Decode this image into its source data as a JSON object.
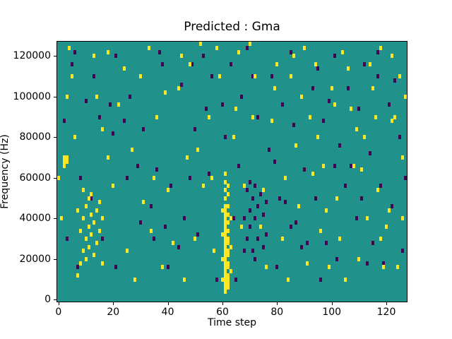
{
  "chart_data": {
    "type": "heatmap",
    "title": "Predicted : Gma",
    "xlabel": "Time step",
    "ylabel": "Frequency (Hz)",
    "x_range": [
      0,
      128
    ],
    "y_range_hz": [
      0,
      128000
    ],
    "grid": {
      "cols": 128,
      "rows": 64,
      "row_height_hz": 2000
    },
    "xticks": [
      0,
      20,
      40,
      60,
      80,
      100,
      120
    ],
    "yticks": [
      0,
      20000,
      40000,
      60000,
      80000,
      100000,
      120000
    ],
    "legend": "none",
    "colors": {
      "background": "#21918c",
      "high": "#fde725",
      "low": "#440154"
    },
    "cells": {
      "high": [
        [
          60,
          5
        ],
        [
          60,
          10
        ],
        [
          60,
          16
        ],
        [
          60,
          22
        ],
        [
          61,
          2
        ],
        [
          61,
          3
        ],
        [
          61,
          4
        ],
        [
          61,
          5
        ],
        [
          61,
          6
        ],
        [
          61,
          7
        ],
        [
          61,
          8
        ],
        [
          61,
          9
        ],
        [
          61,
          10
        ],
        [
          61,
          11
        ],
        [
          61,
          12
        ],
        [
          61,
          13
        ],
        [
          61,
          14
        ],
        [
          61,
          15
        ],
        [
          61,
          16
        ],
        [
          61,
          17
        ],
        [
          61,
          18
        ],
        [
          61,
          19
        ],
        [
          61,
          20
        ],
        [
          61,
          21
        ],
        [
          61,
          22
        ],
        [
          61,
          23
        ],
        [
          61,
          25
        ],
        [
          61,
          27
        ],
        [
          61,
          29
        ],
        [
          61,
          31
        ],
        [
          62,
          3
        ],
        [
          62,
          4
        ],
        [
          62,
          5
        ],
        [
          62,
          6
        ],
        [
          62,
          8
        ],
        [
          62,
          9
        ],
        [
          62,
          11
        ],
        [
          62,
          12
        ],
        [
          62,
          14
        ],
        [
          62,
          15
        ],
        [
          62,
          17
        ],
        [
          62,
          19
        ],
        [
          62,
          21
        ],
        [
          62,
          23
        ],
        [
          62,
          26
        ],
        [
          62,
          28
        ],
        [
          63,
          7
        ],
        [
          63,
          13
        ],
        [
          63,
          20
        ],
        [
          7,
          6
        ],
        [
          7,
          22
        ],
        [
          8,
          9
        ],
        [
          8,
          17
        ],
        [
          9,
          12
        ],
        [
          9,
          20
        ],
        [
          9,
          27
        ],
        [
          10,
          10
        ],
        [
          10,
          15
        ],
        [
          10,
          23
        ],
        [
          11,
          13
        ],
        [
          11,
          18
        ],
        [
          11,
          25
        ],
        [
          12,
          16
        ],
        [
          12,
          21
        ],
        [
          12,
          26
        ],
        [
          13,
          11
        ],
        [
          13,
          19
        ],
        [
          14,
          14
        ],
        [
          14,
          22
        ],
        [
          15,
          17
        ],
        [
          15,
          24
        ],
        [
          16,
          9
        ],
        [
          16,
          20
        ],
        [
          2,
          33
        ],
        [
          2,
          34
        ],
        [
          2,
          35
        ],
        [
          3,
          34
        ],
        [
          3,
          35
        ],
        [
          4,
          62
        ],
        [
          13,
          60
        ],
        [
          18,
          61
        ],
        [
          33,
          62
        ],
        [
          45,
          60
        ],
        [
          52,
          63
        ],
        [
          58,
          62
        ],
        [
          66,
          61
        ],
        [
          70,
          63
        ],
        [
          86,
          60
        ],
        [
          90,
          62
        ],
        [
          104,
          61
        ],
        [
          118,
          62
        ],
        [
          122,
          60
        ],
        [
          22,
          48
        ],
        [
          27,
          37
        ],
        [
          35,
          30
        ],
        [
          40,
          27
        ],
        [
          47,
          35
        ],
        [
          50,
          15
        ],
        [
          55,
          45
        ],
        [
          65,
          47
        ],
        [
          72,
          55
        ],
        [
          78,
          44
        ],
        [
          83,
          30
        ],
        [
          88,
          23
        ],
        [
          92,
          45
        ],
        [
          97,
          33
        ],
        [
          102,
          25
        ],
        [
          107,
          47
        ],
        [
          112,
          40
        ],
        [
          117,
          27
        ],
        [
          120,
          18
        ],
        [
          125,
          55
        ],
        [
          30,
          55
        ],
        [
          25,
          12
        ],
        [
          38,
          8
        ],
        [
          44,
          52
        ],
        [
          99,
          8
        ],
        [
          110,
          10
        ],
        [
          115,
          52
        ],
        [
          123,
          45
        ],
        [
          18,
          35
        ],
        [
          20,
          28
        ],
        [
          85,
          55
        ],
        [
          94,
          58
        ],
        [
          3,
          50
        ],
        [
          5,
          55
        ],
        [
          68,
          28
        ],
        [
          74,
          18
        ],
        [
          79,
          52
        ],
        [
          106,
          57
        ],
        [
          113,
          20
        ],
        [
          124,
          8
        ],
        [
          126,
          35
        ],
        [
          48,
          58
        ],
        [
          56,
          30
        ],
        [
          64,
          40
        ],
        [
          36,
          45
        ],
        [
          31,
          24
        ],
        [
          28,
          5
        ],
        [
          16,
          42
        ],
        [
          89,
          50
        ],
        [
          96,
          17
        ],
        [
          100,
          52
        ],
        [
          108,
          33
        ],
        [
          116,
          45
        ],
        [
          121,
          22
        ],
        [
          6,
          40
        ],
        [
          14,
          50
        ],
        [
          42,
          14
        ],
        [
          53,
          28
        ],
        [
          76,
          8
        ],
        [
          82,
          15
        ],
        [
          87,
          38
        ],
        [
          93,
          31
        ],
        [
          103,
          15
        ],
        [
          109,
          42
        ],
        [
          114,
          58
        ],
        [
          119,
          8
        ],
        [
          127,
          50
        ],
        [
          1,
          20
        ],
        [
          0,
          30
        ],
        [
          24,
          57
        ],
        [
          34,
          17
        ],
        [
          39,
          51
        ],
        [
          46,
          5
        ],
        [
          51,
          37
        ],
        [
          57,
          12
        ],
        [
          59,
          55
        ],
        [
          67,
          18
        ],
        [
          71,
          45
        ],
        [
          75,
          27
        ],
        [
          80,
          58
        ],
        [
          84,
          5
        ],
        [
          91,
          9
        ],
        [
          95,
          40
        ],
        [
          98,
          22
        ],
        [
          101,
          48
        ],
        [
          105,
          5
        ],
        [
          111,
          32
        ],
        [
          118,
          15
        ],
        [
          122,
          44
        ],
        [
          126,
          20
        ]
      ],
      "low": [
        [
          68,
          12
        ],
        [
          68,
          20
        ],
        [
          69,
          15
        ],
        [
          69,
          27
        ],
        [
          70,
          18
        ],
        [
          70,
          22
        ],
        [
          70,
          29
        ],
        [
          71,
          12
        ],
        [
          71,
          25
        ],
        [
          72,
          10
        ],
        [
          72,
          20
        ],
        [
          72,
          28
        ],
        [
          73,
          15
        ],
        [
          73,
          23
        ],
        [
          74,
          18
        ],
        [
          74,
          26
        ],
        [
          75,
          13
        ],
        [
          75,
          21
        ],
        [
          76,
          16
        ],
        [
          76,
          24
        ],
        [
          6,
          61
        ],
        [
          21,
          60
        ],
        [
          37,
          61
        ],
        [
          53,
          60
        ],
        [
          69,
          62
        ],
        [
          85,
          61
        ],
        [
          101,
          60
        ],
        [
          117,
          61
        ],
        [
          5,
          58
        ],
        [
          10,
          49
        ],
        [
          15,
          45
        ],
        [
          20,
          41
        ],
        [
          25,
          30
        ],
        [
          30,
          19
        ],
        [
          35,
          15
        ],
        [
          40,
          8
        ],
        [
          45,
          53
        ],
        [
          50,
          42
        ],
        [
          55,
          31
        ],
        [
          60,
          48
        ],
        [
          65,
          5
        ],
        [
          78,
          55
        ],
        [
          82,
          48
        ],
        [
          86,
          43
        ],
        [
          90,
          32
        ],
        [
          94,
          25
        ],
        [
          98,
          14
        ],
        [
          102,
          10
        ],
        [
          106,
          52
        ],
        [
          110,
          47
        ],
        [
          114,
          36
        ],
        [
          118,
          28
        ],
        [
          122,
          23
        ],
        [
          126,
          12
        ],
        [
          8,
          30
        ],
        [
          12,
          25
        ],
        [
          16,
          15
        ],
        [
          21,
          8
        ],
        [
          26,
          50
        ],
        [
          31,
          42
        ],
        [
          36,
          32
        ],
        [
          41,
          28
        ],
        [
          46,
          20
        ],
        [
          51,
          16
        ],
        [
          56,
          55
        ],
        [
          61,
          40
        ],
        [
          66,
          33
        ],
        [
          71,
          55
        ],
        [
          77,
          37
        ],
        [
          81,
          25
        ],
        [
          85,
          18
        ],
        [
          89,
          13
        ],
        [
          93,
          52
        ],
        [
          97,
          44
        ],
        [
          101,
          33
        ],
        [
          105,
          28
        ],
        [
          109,
          20
        ],
        [
          113,
          9
        ],
        [
          117,
          55
        ],
        [
          121,
          48
        ],
        [
          125,
          40
        ],
        [
          3,
          15
        ],
        [
          7,
          8
        ],
        [
          13,
          55
        ],
        [
          19,
          48
        ],
        [
          24,
          44
        ],
        [
          29,
          33
        ],
        [
          34,
          23
        ],
        [
          39,
          18
        ],
        [
          44,
          13
        ],
        [
          49,
          58
        ],
        [
          54,
          47
        ],
        [
          58,
          5
        ],
        [
          63,
          58
        ],
        [
          67,
          50
        ],
        [
          73,
          45
        ],
        [
          79,
          34
        ],
        [
          83,
          24
        ],
        [
          87,
          19
        ],
        [
          91,
          14
        ],
        [
          95,
          57
        ],
        [
          99,
          49
        ],
        [
          103,
          38
        ],
        [
          107,
          33
        ],
        [
          111,
          25
        ],
        [
          115,
          14
        ],
        [
          119,
          9
        ],
        [
          123,
          54
        ],
        [
          127,
          30
        ],
        [
          2,
          44
        ],
        [
          38,
          58
        ],
        [
          48,
          30
        ],
        [
          64,
          20
        ],
        [
          80,
          8
        ],
        [
          96,
          5
        ],
        [
          112,
          58
        ]
      ]
    }
  }
}
